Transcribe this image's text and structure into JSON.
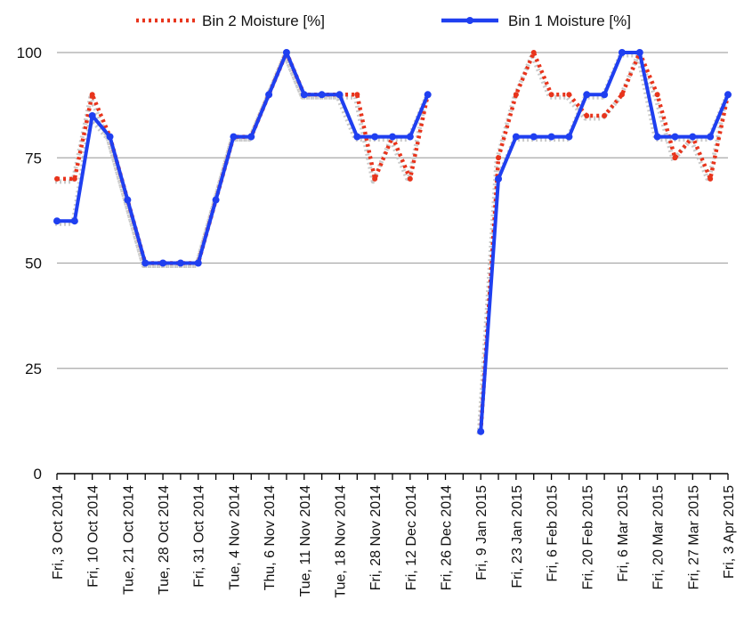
{
  "chart_data": {
    "type": "line",
    "title": "",
    "xlabel": "",
    "ylabel": "",
    "ylim": [
      0,
      100
    ],
    "yticks": [
      0,
      25,
      50,
      75,
      100
    ],
    "grid": "horizontal",
    "legend_position": "top",
    "categories": [
      "Fri, 3 Oct 2014",
      "Fri, 10 Oct 2014",
      "Tue, 21 Oct 2014",
      "Tue, 28 Oct 2014",
      "Fri, 31 Oct 2014",
      "Tue, 4 Nov 2014",
      "Thu, 6 Nov 2014",
      "Tue, 11 Nov 2014",
      "Tue, 18 Nov 2014",
      "Fri, 28 Nov 2014",
      "Fri, 12 Dec 2014",
      "Fri, 26 Dec 2014",
      "Fri, 9 Jan 2015",
      "Fri, 23 Jan 2015",
      "Fri, 6 Feb 2015",
      "Fri, 20 Feb 2015",
      "Fri, 6 Mar 2015",
      "Fri, 20 Mar 2015",
      "Fri, 27 Mar 2015",
      "Fri, 3 Apr 2015"
    ],
    "series": [
      {
        "name": "Bin 2 Moisture [%]",
        "color": "#e8341c",
        "style": "dotted",
        "segments": [
          [
            [
              0,
              70
            ],
            [
              0.5,
              70
            ],
            [
              1,
              90
            ],
            [
              1.5,
              80
            ],
            [
              2,
              65
            ],
            [
              2.5,
              50
            ],
            [
              3,
              50
            ],
            [
              3.5,
              50
            ],
            [
              4,
              50
            ],
            [
              4.5,
              65
            ],
            [
              5,
              80
            ],
            [
              5.5,
              80
            ],
            [
              6,
              90
            ],
            [
              6.5,
              100
            ],
            [
              7,
              90
            ],
            [
              7.5,
              90
            ],
            [
              8,
              90
            ],
            [
              8.5,
              90
            ],
            [
              9,
              70
            ],
            [
              9.5,
              80
            ],
            [
              10,
              70
            ],
            [
              10.5,
              90
            ]
          ],
          [
            [
              12,
              10
            ],
            [
              12.5,
              75
            ],
            [
              13,
              90
            ],
            [
              13.5,
              100
            ],
            [
              14,
              90
            ],
            [
              14.5,
              90
            ],
            [
              15,
              85
            ],
            [
              15.5,
              85
            ],
            [
              16,
              90
            ],
            [
              16.5,
              100
            ],
            [
              17,
              90
            ],
            [
              17.5,
              75
            ],
            [
              18,
              80
            ],
            [
              18.5,
              70
            ],
            [
              19,
              90
            ]
          ]
        ]
      },
      {
        "name": "Bin 1 Moisture [%]",
        "color": "#1f3ff0",
        "style": "solid",
        "segments": [
          [
            [
              0,
              60
            ],
            [
              0.5,
              60
            ],
            [
              1,
              85
            ],
            [
              1.5,
              80
            ],
            [
              2,
              65
            ],
            [
              2.5,
              50
            ],
            [
              3,
              50
            ],
            [
              3.5,
              50
            ],
            [
              4,
              50
            ],
            [
              4.5,
              65
            ],
            [
              5,
              80
            ],
            [
              5.5,
              80
            ],
            [
              6,
              90
            ],
            [
              6.5,
              100
            ],
            [
              7,
              90
            ],
            [
              7.5,
              90
            ],
            [
              8,
              90
            ],
            [
              8.5,
              80
            ],
            [
              9,
              80
            ],
            [
              9.5,
              80
            ],
            [
              10,
              80
            ],
            [
              10.5,
              90
            ]
          ],
          [
            [
              12,
              10
            ],
            [
              12.5,
              70
            ],
            [
              13,
              80
            ],
            [
              13.5,
              80
            ],
            [
              14,
              80
            ],
            [
              14.5,
              80
            ],
            [
              15,
              90
            ],
            [
              15.5,
              90
            ],
            [
              16,
              100
            ],
            [
              16.5,
              100
            ],
            [
              17,
              80
            ],
            [
              17.5,
              80
            ],
            [
              18,
              80
            ],
            [
              18.5,
              80
            ],
            [
              19,
              90
            ]
          ]
        ]
      }
    ]
  }
}
